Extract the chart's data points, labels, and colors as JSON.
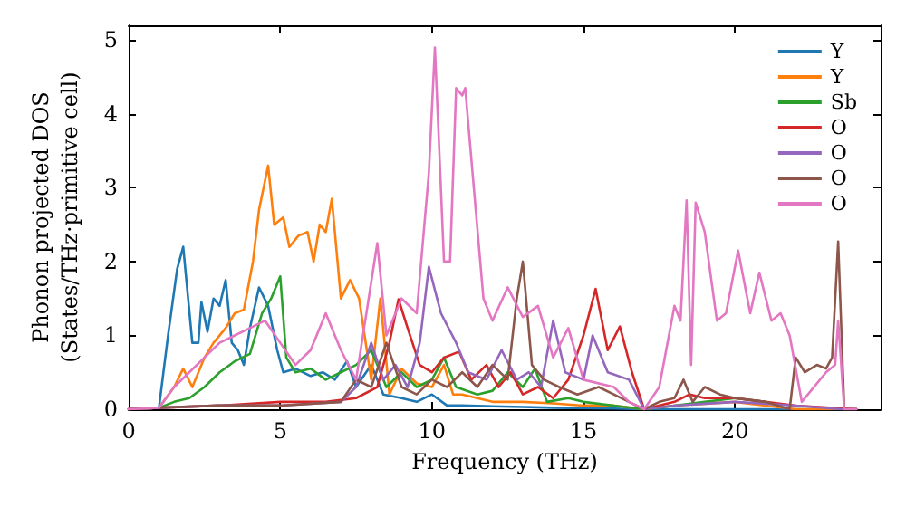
{
  "chart_data": {
    "type": "line",
    "xlabel": "Frequency (THz)",
    "ylabel": "Phonon projected DOS\n(States/THz·primitive cell)",
    "xlim": [
      0,
      24.8
    ],
    "ylim": [
      0,
      5.2
    ],
    "xticks": [
      0,
      5,
      10,
      15,
      20
    ],
    "yticks": [
      0,
      1,
      2,
      3,
      4,
      5
    ],
    "grid": false,
    "legend": "top right",
    "marker": "none",
    "line_style": "solid",
    "series": [
      {
        "name": "Y",
        "color": "#1f77b4",
        "x": [
          0,
          1,
          1.3,
          1.6,
          1.8,
          2.1,
          2.3,
          2.4,
          2.6,
          2.8,
          3.0,
          3.2,
          3.4,
          3.6,
          3.8,
          4.0,
          4.3,
          4.6,
          4.9,
          5.1,
          5.5,
          6.0,
          6.4,
          6.8,
          7.2,
          7.5,
          8.0,
          8.4,
          9.0,
          9.5,
          10.0,
          10.5,
          11,
          12,
          13,
          14,
          16,
          17,
          24
        ],
        "values": [
          0,
          0.02,
          1.0,
          1.9,
          2.2,
          0.9,
          0.9,
          1.45,
          1.05,
          1.5,
          1.4,
          1.75,
          0.9,
          0.8,
          0.6,
          1.1,
          1.65,
          1.4,
          0.8,
          0.5,
          0.55,
          0.45,
          0.5,
          0.4,
          0.65,
          0.3,
          0.6,
          0.2,
          0.15,
          0.1,
          0.2,
          0.05,
          0.05,
          0.04,
          0.03,
          0.02,
          0.01,
          0,
          0
        ]
      },
      {
        "name": "Y",
        "color": "#ff7f0e",
        "x": [
          0,
          1,
          1.5,
          1.8,
          2.1,
          2.5,
          2.8,
          3.2,
          3.5,
          3.8,
          4.1,
          4.3,
          4.6,
          4.8,
          5.1,
          5.3,
          5.6,
          5.9,
          6.1,
          6.3,
          6.5,
          6.7,
          7.0,
          7.3,
          7.6,
          8.0,
          8.3,
          8.6,
          9.0,
          9.5,
          10,
          10.4,
          10.7,
          11,
          11.5,
          12,
          13,
          14,
          15,
          16,
          17,
          18,
          20,
          21,
          22,
          24
        ],
        "values": [
          0,
          0.02,
          0.3,
          0.55,
          0.3,
          0.7,
          0.9,
          1.1,
          1.3,
          1.35,
          2.0,
          2.7,
          3.3,
          2.5,
          2.6,
          2.2,
          2.35,
          2.4,
          2.0,
          2.5,
          2.4,
          2.85,
          1.5,
          1.75,
          1.5,
          0.4,
          1.5,
          0.2,
          0.55,
          0.35,
          0.3,
          0.6,
          0.2,
          0.2,
          0.15,
          0.1,
          0.1,
          0.08,
          0.05,
          0.05,
          0,
          0.05,
          0.1,
          0.05,
          0,
          0
        ]
      },
      {
        "name": "Sb",
        "color": "#2ca02c",
        "x": [
          0,
          1,
          1.5,
          2.0,
          2.5,
          3,
          3.5,
          4,
          4.4,
          4.7,
          5.0,
          5.2,
          5.5,
          6,
          6.5,
          7.0,
          7.5,
          8,
          8.5,
          9,
          9.5,
          10,
          10.4,
          10.8,
          11.5,
          12,
          12.5,
          13,
          13.4,
          13.8,
          14.5,
          15,
          16,
          17,
          18,
          19,
          20,
          21
        ],
        "values": [
          0,
          0.02,
          0.1,
          0.15,
          0.3,
          0.5,
          0.65,
          0.75,
          1.3,
          1.5,
          1.8,
          0.7,
          0.5,
          0.55,
          0.4,
          0.5,
          0.6,
          0.8,
          0.3,
          0.5,
          0.3,
          0.4,
          0.7,
          0.3,
          0.2,
          0.25,
          0.5,
          0.3,
          0.55,
          0.1,
          0.15,
          0.1,
          0.05,
          0,
          0.05,
          0.1,
          0.15,
          0.1
        ]
      },
      {
        "name": "O",
        "color": "#d62728",
        "x": [
          0,
          1,
          3,
          5,
          6.5,
          7.5,
          8.2,
          8.6,
          8.9,
          9.2,
          9.6,
          10.0,
          10.4,
          10.9,
          11.3,
          11.8,
          12.2,
          12.6,
          13.0,
          13.5,
          14.0,
          14.5,
          15.0,
          15.4,
          15.8,
          16.2,
          16.6,
          17,
          18,
          18.5,
          19,
          20,
          21,
          22,
          24
        ],
        "values": [
          0,
          0.02,
          0.05,
          0.1,
          0.1,
          0.15,
          0.3,
          0.9,
          1.49,
          1.1,
          0.6,
          0.5,
          0.7,
          0.78,
          0.4,
          0.6,
          0.3,
          0.5,
          0.2,
          0.3,
          0.15,
          0.4,
          1.0,
          1.63,
          0.8,
          1.12,
          0.5,
          0,
          0.1,
          0.2,
          0.15,
          0.15,
          0.1,
          0.05,
          0
        ]
      },
      {
        "name": "O",
        "color": "#9467bd",
        "x": [
          0,
          1,
          3,
          5,
          7,
          7.5,
          8.0,
          8.4,
          8.8,
          9.2,
          9.6,
          9.9,
          10.3,
          10.8,
          11.2,
          11.8,
          12.3,
          12.8,
          13.2,
          13.6,
          14.0,
          14.4,
          15.0,
          15.3,
          15.8,
          16.5,
          17,
          18,
          20,
          22,
          23.5,
          24
        ],
        "values": [
          0,
          0.02,
          0.05,
          0.05,
          0.1,
          0.3,
          0.9,
          0.4,
          0.6,
          0.3,
          0.9,
          1.93,
          1.3,
          0.9,
          0.5,
          0.4,
          0.8,
          0.4,
          0.5,
          0.3,
          1.2,
          0.5,
          0.4,
          1.0,
          0.5,
          0.4,
          0,
          0.05,
          0.1,
          0.05,
          0,
          0
        ]
      },
      {
        "name": "O",
        "color": "#8c564b",
        "x": [
          0,
          1,
          3,
          5,
          7,
          7.5,
          8.0,
          8.5,
          9.0,
          9.5,
          10.0,
          10.5,
          11.0,
          11.5,
          12.0,
          12.5,
          12.8,
          13.0,
          13.3,
          13.7,
          14.2,
          14.8,
          15.5,
          16.0,
          16.5,
          17,
          17.5,
          18.0,
          18.3,
          18.6,
          19.0,
          19.5,
          20,
          21,
          21.8,
          22.0,
          22.3,
          22.7,
          23.0,
          23.2,
          23.4,
          23.6,
          24
        ],
        "values": [
          0,
          0.02,
          0.05,
          0.05,
          0.1,
          0.4,
          0.3,
          0.9,
          0.3,
          0.2,
          0.4,
          0.3,
          0.5,
          0.3,
          0.6,
          0.4,
          1.5,
          2.0,
          0.6,
          0.4,
          0.3,
          0.2,
          0.3,
          0.2,
          0.1,
          0,
          0.1,
          0.15,
          0.4,
          0.1,
          0.3,
          0.2,
          0.15,
          0.1,
          0,
          0.7,
          0.5,
          0.6,
          0.55,
          0.7,
          2.27,
          0,
          0
        ]
      },
      {
        "name": "O",
        "color": "#e377c2",
        "x": [
          0,
          1,
          1.5,
          2,
          2.5,
          3,
          3.5,
          4,
          4.5,
          5,
          5.5,
          6,
          6.5,
          7,
          7.5,
          8.2,
          8.5,
          9,
          9.5,
          9.9,
          10.1,
          10.4,
          10.6,
          10.8,
          11.0,
          11.1,
          11.7,
          12.0,
          12.5,
          13,
          13.5,
          14,
          14.5,
          15,
          16,
          16.5,
          17,
          17.5,
          18,
          18.2,
          18.4,
          18.55,
          18.7,
          19,
          19.4,
          19.7,
          20.1,
          20.5,
          20.8,
          21.2,
          21.5,
          21.8,
          22.2,
          23,
          23.3,
          23.4,
          23.6,
          24
        ],
        "values": [
          0,
          0.02,
          0.3,
          0.5,
          0.7,
          0.9,
          1.0,
          1.1,
          1.2,
          0.9,
          0.6,
          0.8,
          1.3,
          0.8,
          0.4,
          2.25,
          1.0,
          1.5,
          1.3,
          3.2,
          4.9,
          2.0,
          2.0,
          4.35,
          4.25,
          4.35,
          1.5,
          1.2,
          1.65,
          1.25,
          1.4,
          0.7,
          1.1,
          0.4,
          0.3,
          0.1,
          0,
          0.3,
          1.4,
          1.2,
          2.83,
          0.6,
          2.8,
          2.4,
          1.2,
          1.3,
          2.15,
          1.3,
          1.85,
          1.2,
          1.3,
          1.0,
          0.1,
          0.5,
          0.6,
          1.2,
          0,
          0
        ]
      }
    ]
  }
}
